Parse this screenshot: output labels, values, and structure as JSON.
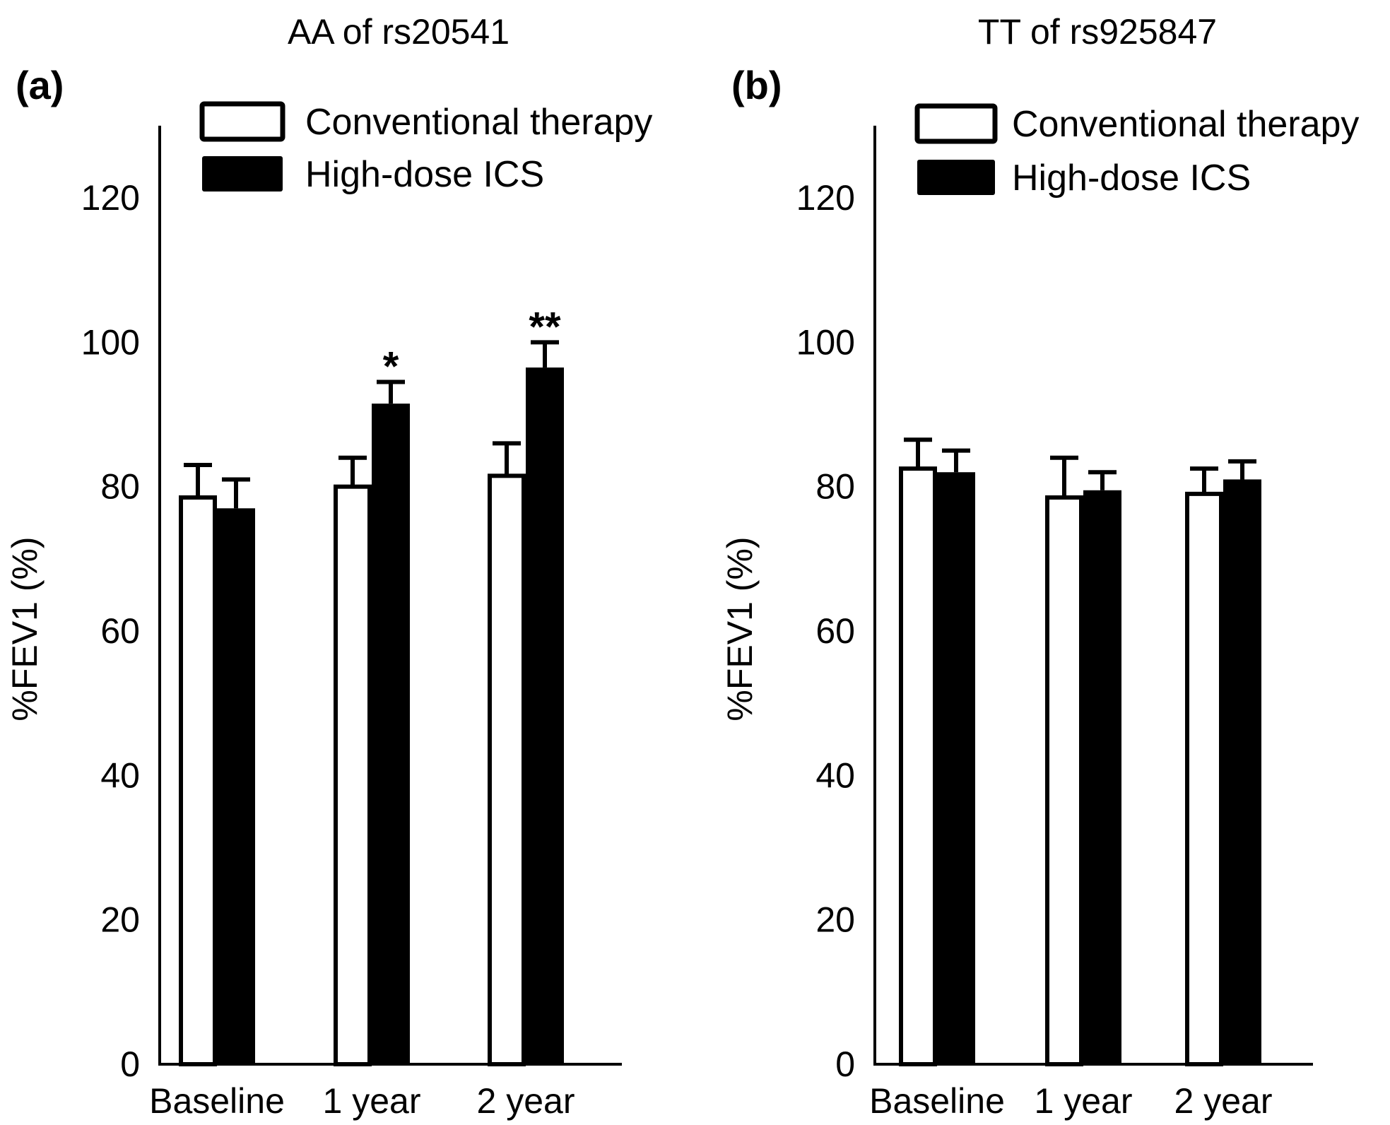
{
  "colors": {
    "conventional": "#ffffff",
    "high_dose": "#000000",
    "axis": "#000000"
  },
  "chart_data": [
    {
      "type": "bar",
      "panel_label": "(a)",
      "title": "AA of rs20541",
      "ylabel": "%FEV1 (%)",
      "xlabel": "",
      "ylim": [
        0,
        130
      ],
      "yticks": [
        0,
        20,
        40,
        60,
        80,
        100,
        120
      ],
      "categories": [
        "Baseline",
        "1 year",
        "2 year"
      ],
      "legend_position": "top",
      "series": [
        {
          "name": "Conventional therapy",
          "values": [
            78.5,
            80,
            81.5
          ],
          "errors": [
            4.5,
            4,
            4.5
          ],
          "color": "#ffffff"
        },
        {
          "name": "High-dose ICS",
          "values": [
            77,
            91.5,
            96.5
          ],
          "errors": [
            4,
            3,
            3.5
          ],
          "color": "#000000"
        }
      ],
      "annotations": [
        {
          "category": "1 year",
          "text": "*"
        },
        {
          "category": "2 year",
          "text": "**"
        }
      ]
    },
    {
      "type": "bar",
      "panel_label": "(b)",
      "title": "TT of rs925847",
      "ylabel": "%FEV1 (%)",
      "xlabel": "",
      "ylim": [
        0,
        130
      ],
      "yticks": [
        0,
        20,
        40,
        60,
        80,
        100,
        120
      ],
      "categories": [
        "Baseline",
        "1 year",
        "2 year"
      ],
      "legend_position": "top",
      "series": [
        {
          "name": "Conventional therapy",
          "values": [
            82.5,
            78.5,
            79
          ],
          "errors": [
            4,
            5.5,
            3.5
          ],
          "color": "#ffffff"
        },
        {
          "name": "High-dose ICS",
          "values": [
            82,
            79.5,
            81
          ],
          "errors": [
            3,
            2.5,
            2.5
          ],
          "color": "#000000"
        }
      ],
      "annotations": []
    }
  ]
}
